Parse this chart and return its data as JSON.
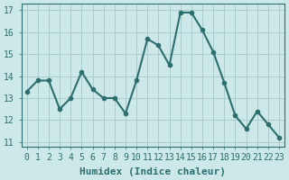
{
  "x": [
    0,
    1,
    2,
    3,
    4,
    5,
    6,
    7,
    8,
    9,
    10,
    11,
    12,
    13,
    14,
    15,
    16,
    17,
    18,
    19,
    20,
    21,
    22,
    23
  ],
  "y": [
    13.3,
    13.8,
    13.8,
    12.5,
    13.0,
    14.2,
    13.4,
    13.0,
    13.0,
    12.3,
    13.8,
    15.7,
    15.4,
    14.5,
    16.9,
    16.9,
    16.1,
    15.1,
    13.7,
    12.2,
    11.6,
    12.4,
    11.8,
    11.2
  ],
  "line_color": "#2d6e6e",
  "marker": "o",
  "marker_size": 3,
  "bg_color": "#cce8e8",
  "grid_color": "#aacccc",
  "xlabel": "Humidex (Indice chaleur)",
  "xlabel_fontsize": 8,
  "ylabel_ticks": [
    11,
    12,
    13,
    14,
    15,
    16,
    17
  ],
  "xlim": [
    -0.5,
    23.5
  ],
  "ylim": [
    10.8,
    17.3
  ],
  "tick_fontsize": 7,
  "linewidth": 1.5
}
